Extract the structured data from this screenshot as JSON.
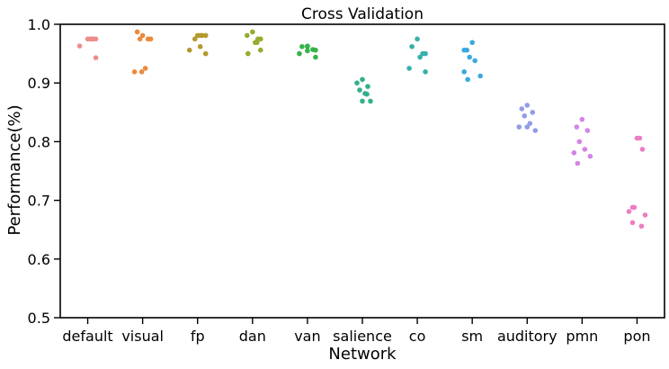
{
  "chart_data": {
    "type": "scatter",
    "title": "Cross Validation",
    "xlabel": "Network",
    "ylabel": "Performance(%)",
    "ylim": [
      0.5,
      1.0
    ],
    "yticks": [
      "0.5",
      "0.6",
      "0.7",
      "0.8",
      "0.9",
      "1.0"
    ],
    "grid": false,
    "categories": [
      "default",
      "visual",
      "fp",
      "dan",
      "van",
      "salience",
      "co",
      "sm",
      "auditory",
      "pmn",
      "pon"
    ],
    "series": [
      {
        "category": "default",
        "color": "#ee8c8c",
        "values": [
          0.975,
          0.975,
          0.975,
          0.975,
          0.975,
          0.963,
          0.943,
          0.975
        ]
      },
      {
        "category": "visual",
        "color": "#ea8a3d",
        "values": [
          0.981,
          0.987,
          0.975,
          0.975,
          0.925,
          0.919,
          0.919,
          0.975
        ]
      },
      {
        "category": "fp",
        "color": "#b39a2d",
        "values": [
          0.981,
          0.981,
          0.981,
          0.975,
          0.962,
          0.956,
          0.95,
          0.981
        ]
      },
      {
        "category": "dan",
        "color": "#92ad2f",
        "values": [
          0.987,
          0.981,
          0.975,
          0.975,
          0.969,
          0.969,
          0.956,
          0.95
        ]
      },
      {
        "category": "van",
        "color": "#34b34b",
        "values": [
          0.963,
          0.962,
          0.957,
          0.956,
          0.955,
          0.95,
          0.944,
          0.962
        ]
      },
      {
        "category": "salience",
        "color": "#34af8d",
        "values": [
          0.906,
          0.9,
          0.894,
          0.888,
          0.882,
          0.881,
          0.869,
          0.869
        ]
      },
      {
        "category": "co",
        "color": "#36b0ab",
        "values": [
          0.975,
          0.962,
          0.95,
          0.95,
          0.944,
          0.925,
          0.919
        ]
      },
      {
        "category": "sm",
        "color": "#39aadf",
        "values": [
          0.969,
          0.956,
          0.956,
          0.944,
          0.938,
          0.919,
          0.912,
          0.906
        ]
      },
      {
        "category": "auditory",
        "color": "#939de6",
        "values": [
          0.862,
          0.856,
          0.85,
          0.844,
          0.831,
          0.825,
          0.819,
          0.825
        ]
      },
      {
        "category": "pmn",
        "color": "#d484e6",
        "values": [
          0.838,
          0.825,
          0.819,
          0.8,
          0.787,
          0.781,
          0.775,
          0.763
        ]
      },
      {
        "category": "pon",
        "color": "#ec7ec3",
        "values": [
          0.806,
          0.806,
          0.787,
          0.688,
          0.688,
          0.681,
          0.675,
          0.662,
          0.656
        ]
      }
    ]
  }
}
